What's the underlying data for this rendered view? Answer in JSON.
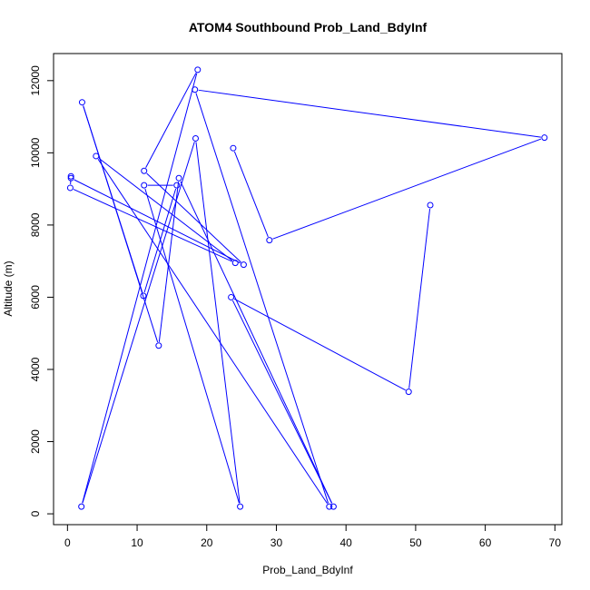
{
  "chart_data": {
    "type": "line",
    "title": "ATOM4 Southbound Prob_Land_BdyInf",
    "xlabel": "Prob_Land_BdyInf",
    "ylabel": "Altitude (m)",
    "xlim": [
      -2,
      71
    ],
    "ylim": [
      -300,
      12750
    ],
    "xticks": [
      0,
      10,
      20,
      30,
      40,
      50,
      60,
      70
    ],
    "yticks": [
      0,
      2000,
      4000,
      6000,
      8000,
      10000,
      12000
    ],
    "grid": false,
    "legend": "none",
    "color": "#0000ff",
    "series": [
      {
        "x": [
          52.1,
          49.0,
          23.5,
          38.2,
          16.0,
          13.1,
          2.1,
          10.9,
          15.7,
          11.0,
          24.8,
          18.4,
          2.0,
          18.7,
          11.0,
          25.3,
          0.5,
          0.5,
          0.4,
          24.1,
          4.1,
          37.6,
          18.3,
          68.5,
          29.0,
          23.8
        ],
        "y": [
          8550,
          3380,
          6000,
          200,
          9300,
          4660,
          11400,
          6040,
          9100,
          9100,
          200,
          10400,
          200,
          12300,
          9500,
          6900,
          9300,
          9350,
          9030,
          6950,
          9910,
          200,
          11750,
          10420,
          7580,
          10130
        ]
      }
    ]
  }
}
